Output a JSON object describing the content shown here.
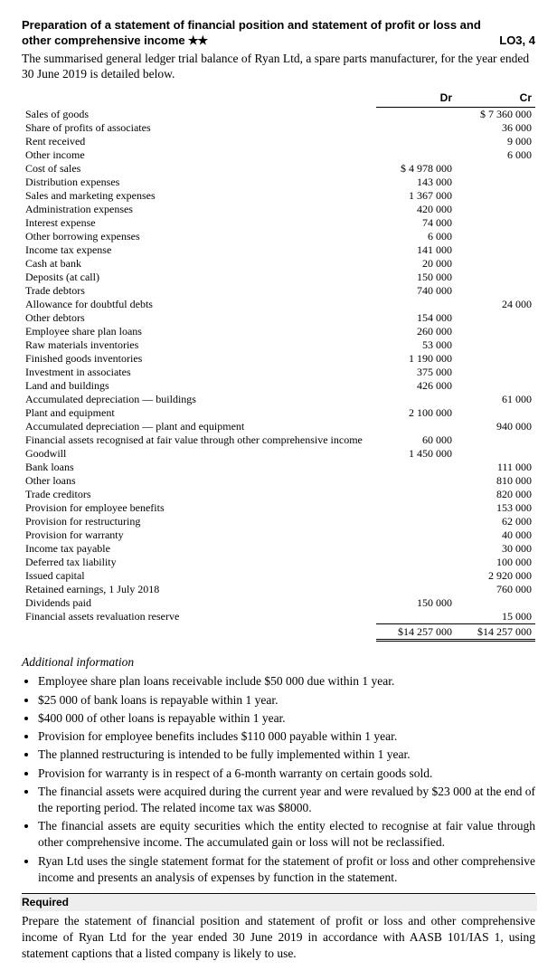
{
  "header": {
    "title_l1": "Preparation of a statement of financial position and statement of profit or loss and",
    "title_l2": "other comprehensive income",
    "stars": "★★",
    "lo": "LO3, 4"
  },
  "intro": "The summarised general ledger trial balance of Ryan Ltd, a spare parts manufacturer, for the year ended 30 June 2019 is detailed below.",
  "col_dr": "Dr",
  "col_cr": "Cr",
  "rows": [
    {
      "label": "Sales of goods",
      "dr": "",
      "cr": "$  7 360 000"
    },
    {
      "label": "Share of profits of associates",
      "dr": "",
      "cr": "36 000"
    },
    {
      "label": "Rent received",
      "dr": "",
      "cr": "9 000"
    },
    {
      "label": "Other income",
      "dr": "",
      "cr": "6 000"
    },
    {
      "label": "Cost of sales",
      "dr": "$  4 978 000",
      "cr": ""
    },
    {
      "label": "Distribution expenses",
      "dr": "143 000",
      "cr": ""
    },
    {
      "label": "Sales and marketing expenses",
      "dr": "1 367 000",
      "cr": ""
    },
    {
      "label": "Administration expenses",
      "dr": "420 000",
      "cr": ""
    },
    {
      "label": "Interest expense",
      "dr": "74 000",
      "cr": ""
    },
    {
      "label": "Other borrowing expenses",
      "dr": "6 000",
      "cr": ""
    },
    {
      "label": "Income tax expense",
      "dr": "141 000",
      "cr": ""
    },
    {
      "label": "Cash at bank",
      "dr": "20 000",
      "cr": ""
    },
    {
      "label": "Deposits (at call)",
      "dr": "150 000",
      "cr": ""
    },
    {
      "label": "Trade debtors",
      "dr": "740 000",
      "cr": ""
    },
    {
      "label": "Allowance for doubtful debts",
      "dr": "",
      "cr": "24 000"
    },
    {
      "label": "Other debtors",
      "dr": "154 000",
      "cr": ""
    },
    {
      "label": "Employee share plan loans",
      "dr": "260 000",
      "cr": ""
    },
    {
      "label": "Raw materials inventories",
      "dr": "53 000",
      "cr": ""
    },
    {
      "label": "Finished goods inventories",
      "dr": "1 190 000",
      "cr": ""
    },
    {
      "label": "Investment in associates",
      "dr": "375 000",
      "cr": ""
    },
    {
      "label": "Land and buildings",
      "dr": "426 000",
      "cr": ""
    },
    {
      "label": "Accumulated depreciation — buildings",
      "dr": "",
      "cr": "61 000"
    },
    {
      "label": "Plant and equipment",
      "dr": "2 100 000",
      "cr": ""
    },
    {
      "label": "Accumulated depreciation — plant and equipment",
      "dr": "",
      "cr": "940 000"
    },
    {
      "label": "Financial assets recognised at fair value through other comprehensive income",
      "dr": "60 000",
      "cr": ""
    },
    {
      "label": "Goodwill",
      "dr": "1 450 000",
      "cr": ""
    },
    {
      "label": "Bank loans",
      "dr": "",
      "cr": "111 000"
    },
    {
      "label": "Other loans",
      "dr": "",
      "cr": "810 000"
    },
    {
      "label": "Trade creditors",
      "dr": "",
      "cr": "820 000"
    },
    {
      "label": "Provision for employee benefits",
      "dr": "",
      "cr": "153 000"
    },
    {
      "label": "Provision for restructuring",
      "dr": "",
      "cr": "62 000"
    },
    {
      "label": "Provision for warranty",
      "dr": "",
      "cr": "40 000"
    },
    {
      "label": "Income tax payable",
      "dr": "",
      "cr": "30 000"
    },
    {
      "label": "Deferred tax liability",
      "dr": "",
      "cr": "100 000"
    },
    {
      "label": "Issued capital",
      "dr": "",
      "cr": "2 920 000"
    },
    {
      "label": "Retained earnings, 1 July 2018",
      "dr": "",
      "cr": "760 000"
    },
    {
      "label": "Dividends paid",
      "dr": "150 000",
      "cr": ""
    },
    {
      "label": "Financial assets revaluation reserve",
      "dr": "",
      "cr": "15 000"
    }
  ],
  "total_dr": "$14 257 000",
  "total_cr": "$14 257 000",
  "additional_heading": "Additional information",
  "info_items": [
    "Employee share plan loans receivable include $50 000 due within 1 year.",
    "$25 000 of bank loans is repayable within 1 year.",
    "$400 000 of other loans is repayable within 1 year.",
    "Provision for employee benefits includes $110 000 payable within 1 year.",
    "The planned restructuring is intended to be fully implemented within 1 year.",
    "Provision for warranty is in respect of a 6-month warranty on certain goods sold.",
    "The financial assets were acquired during the current year and were revalued by $23 000 at the end of the reporting period. The related income tax was $8000.",
    "The financial assets are equity securities which the entity elected to recognise at fair value through other comprehensive income. The accumulated gain or loss will not be reclassified.",
    "Ryan Ltd uses the single statement format for the statement of profit or loss and other comprehensive income and presents an analysis of expenses by function in the statement."
  ],
  "required_label": "Required",
  "required_text": "Prepare the statement of financial position and statement of profit or loss and other comprehensive income of Ryan Ltd for the year ended 30 June 2019 in accordance with AASB 101/IAS 1, using statement captions that a listed company is likely to use."
}
